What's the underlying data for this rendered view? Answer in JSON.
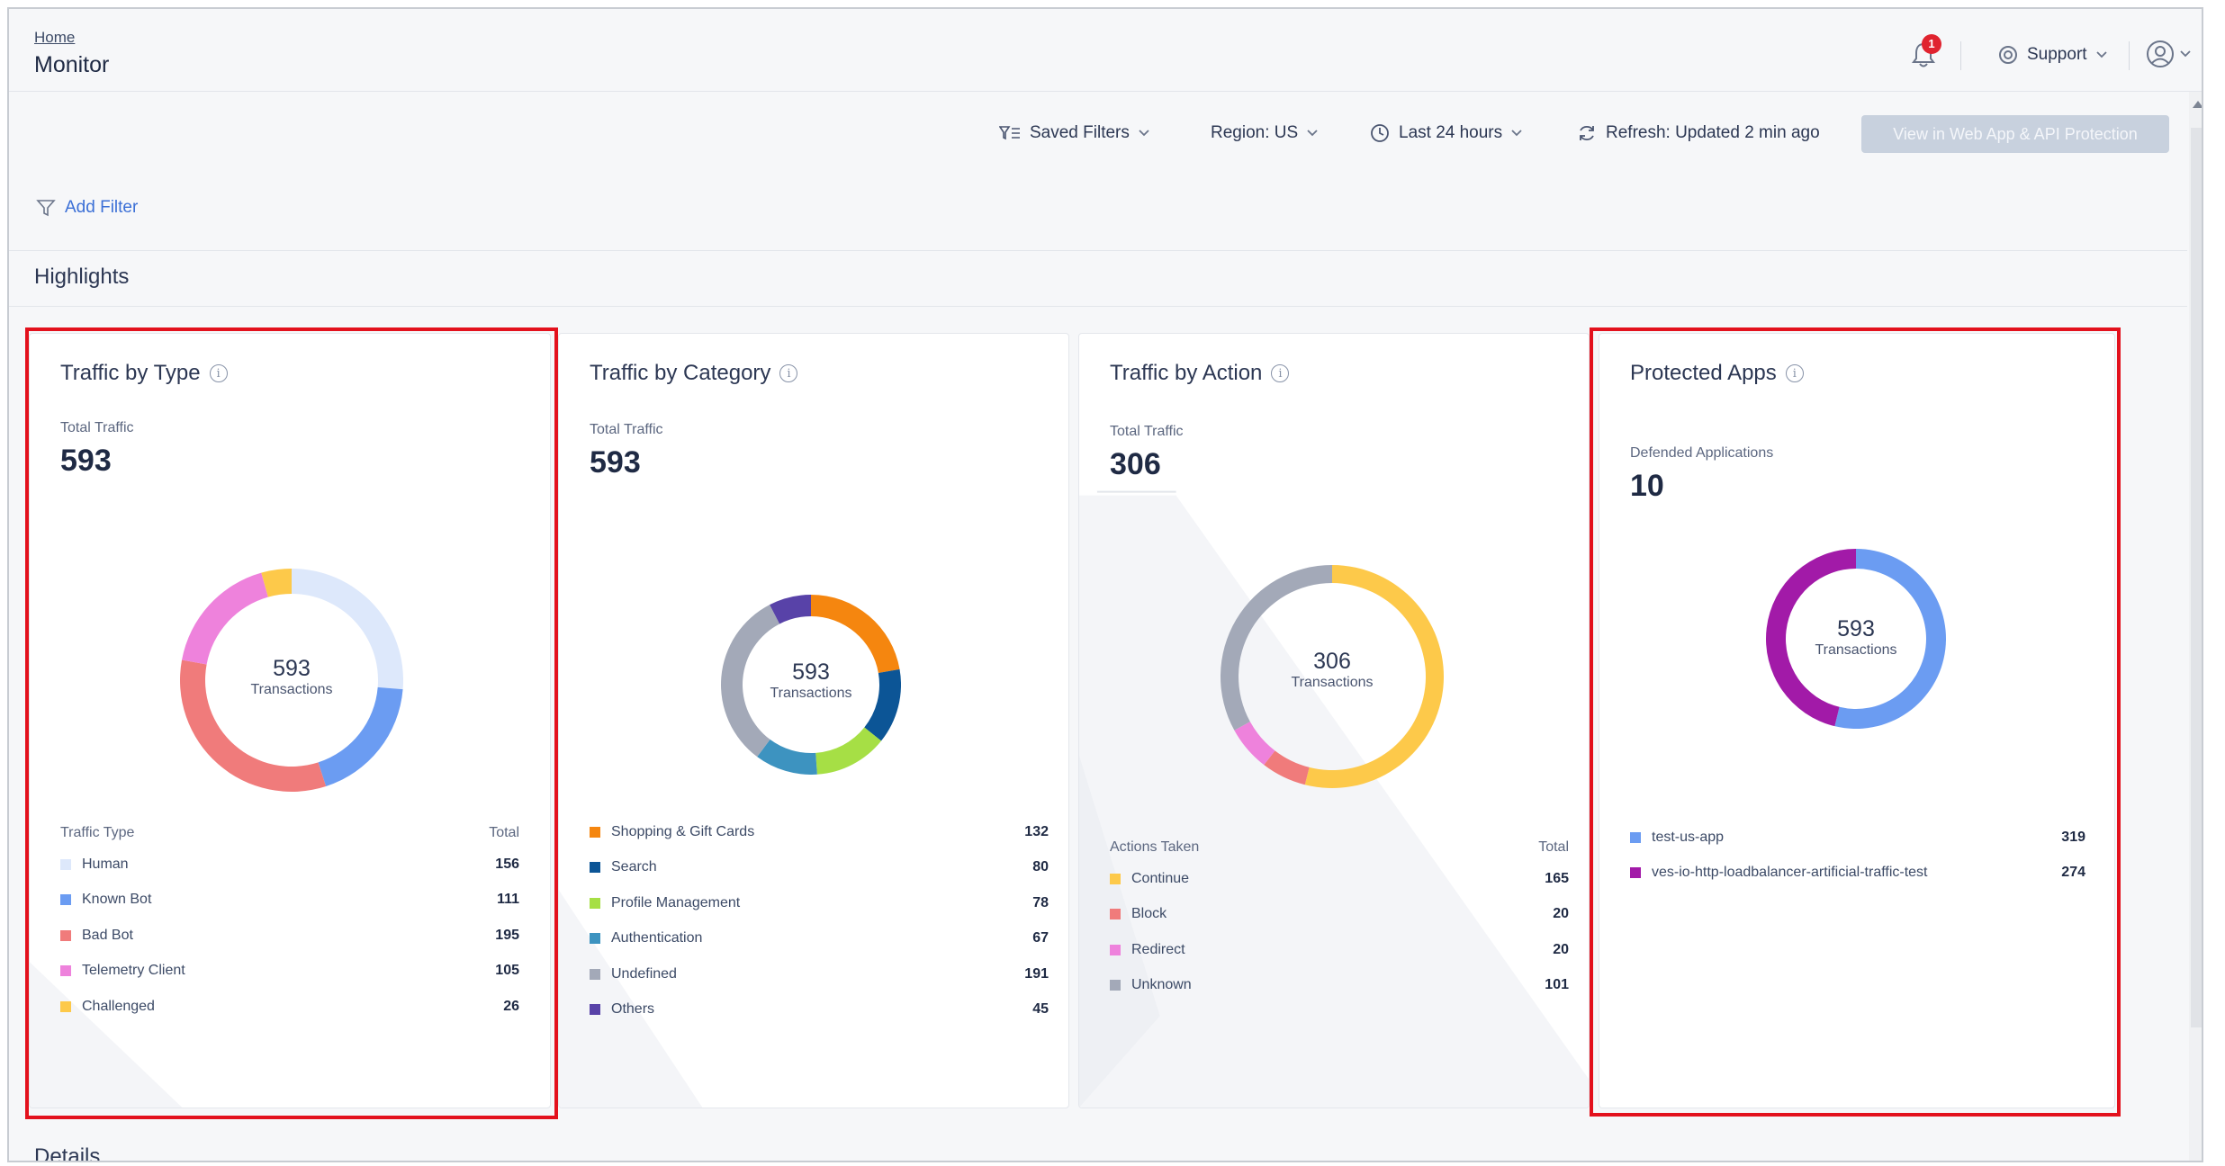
{
  "header": {
    "breadcrumb": "Home",
    "title": "Monitor",
    "notification_count": "1",
    "support_label": "Support"
  },
  "toolbar": {
    "saved_filters": "Saved Filters",
    "region": "Region: US",
    "time_range": "Last 24 hours",
    "refresh": "Refresh: Updated 2 min ago",
    "view_button": "View in Web App & API Protection",
    "add_filter": "Add Filter"
  },
  "sections": {
    "highlights": "Highlights",
    "details": "Details"
  },
  "cards": [
    {
      "title": "Traffic by Type",
      "metric_label": "Total Traffic",
      "metric_value": "593",
      "center_value": "593",
      "center_label": "Transactions",
      "legend_title": "Traffic Type",
      "legend_total_label": "Total",
      "items": [
        {
          "label": "Human",
          "value": 156,
          "color": "#dde8fb"
        },
        {
          "label": "Known Bot",
          "value": 111,
          "color": "#6b9cf2"
        },
        {
          "label": "Bad Bot",
          "value": 195,
          "color": "#f07b7b"
        },
        {
          "label": "Telemetry Client",
          "value": 105,
          "color": "#ee82dc"
        },
        {
          "label": "Challenged",
          "value": 26,
          "color": "#fdc94a"
        }
      ]
    },
    {
      "title": "Traffic by Category",
      "metric_label": "Total Traffic",
      "metric_value": "593",
      "center_value": "593",
      "center_label": "Transactions",
      "legend_title": "",
      "legend_total_label": "",
      "items": [
        {
          "label": "Shopping & Gift Cards",
          "value": 132,
          "color": "#f5860f"
        },
        {
          "label": "Search",
          "value": 80,
          "color": "#0c5596"
        },
        {
          "label": "Profile Management",
          "value": 78,
          "color": "#a6df45"
        },
        {
          "label": "Authentication",
          "value": 67,
          "color": "#3d93c0"
        },
        {
          "label": "Undefined",
          "value": 191,
          "color": "#a3a9b8"
        },
        {
          "label": "Others",
          "value": 45,
          "color": "#5842a8"
        }
      ]
    },
    {
      "title": "Traffic by Action",
      "metric_label": "Total Traffic",
      "metric_value": "306",
      "center_value": "306",
      "center_label": "Transactions",
      "legend_title": "Actions Taken",
      "legend_total_label": "Total",
      "items": [
        {
          "label": "Continue",
          "value": 165,
          "color": "#fdc94a"
        },
        {
          "label": "Block",
          "value": 20,
          "color": "#f07b7b"
        },
        {
          "label": "Redirect",
          "value": 20,
          "color": "#ee82dc"
        },
        {
          "label": "Unknown",
          "value": 101,
          "color": "#a3a9b8"
        }
      ]
    },
    {
      "title": "Protected Apps",
      "metric_label": "Defended Applications",
      "metric_value": "10",
      "center_value": "593",
      "center_label": "Transactions",
      "legend_title": "",
      "legend_total_label": "",
      "items": [
        {
          "label": "test-us-app",
          "value": 319,
          "color": "#6b9cf2"
        },
        {
          "label": "ves-io-http-loadbalancer-artificial-traffic-test",
          "value": 274,
          "color": "#a21aa8"
        }
      ]
    }
  ],
  "colors": {
    "highlight_border": "#e3111d",
    "link": "#3b6fd6",
    "badge": "#e0232f"
  }
}
